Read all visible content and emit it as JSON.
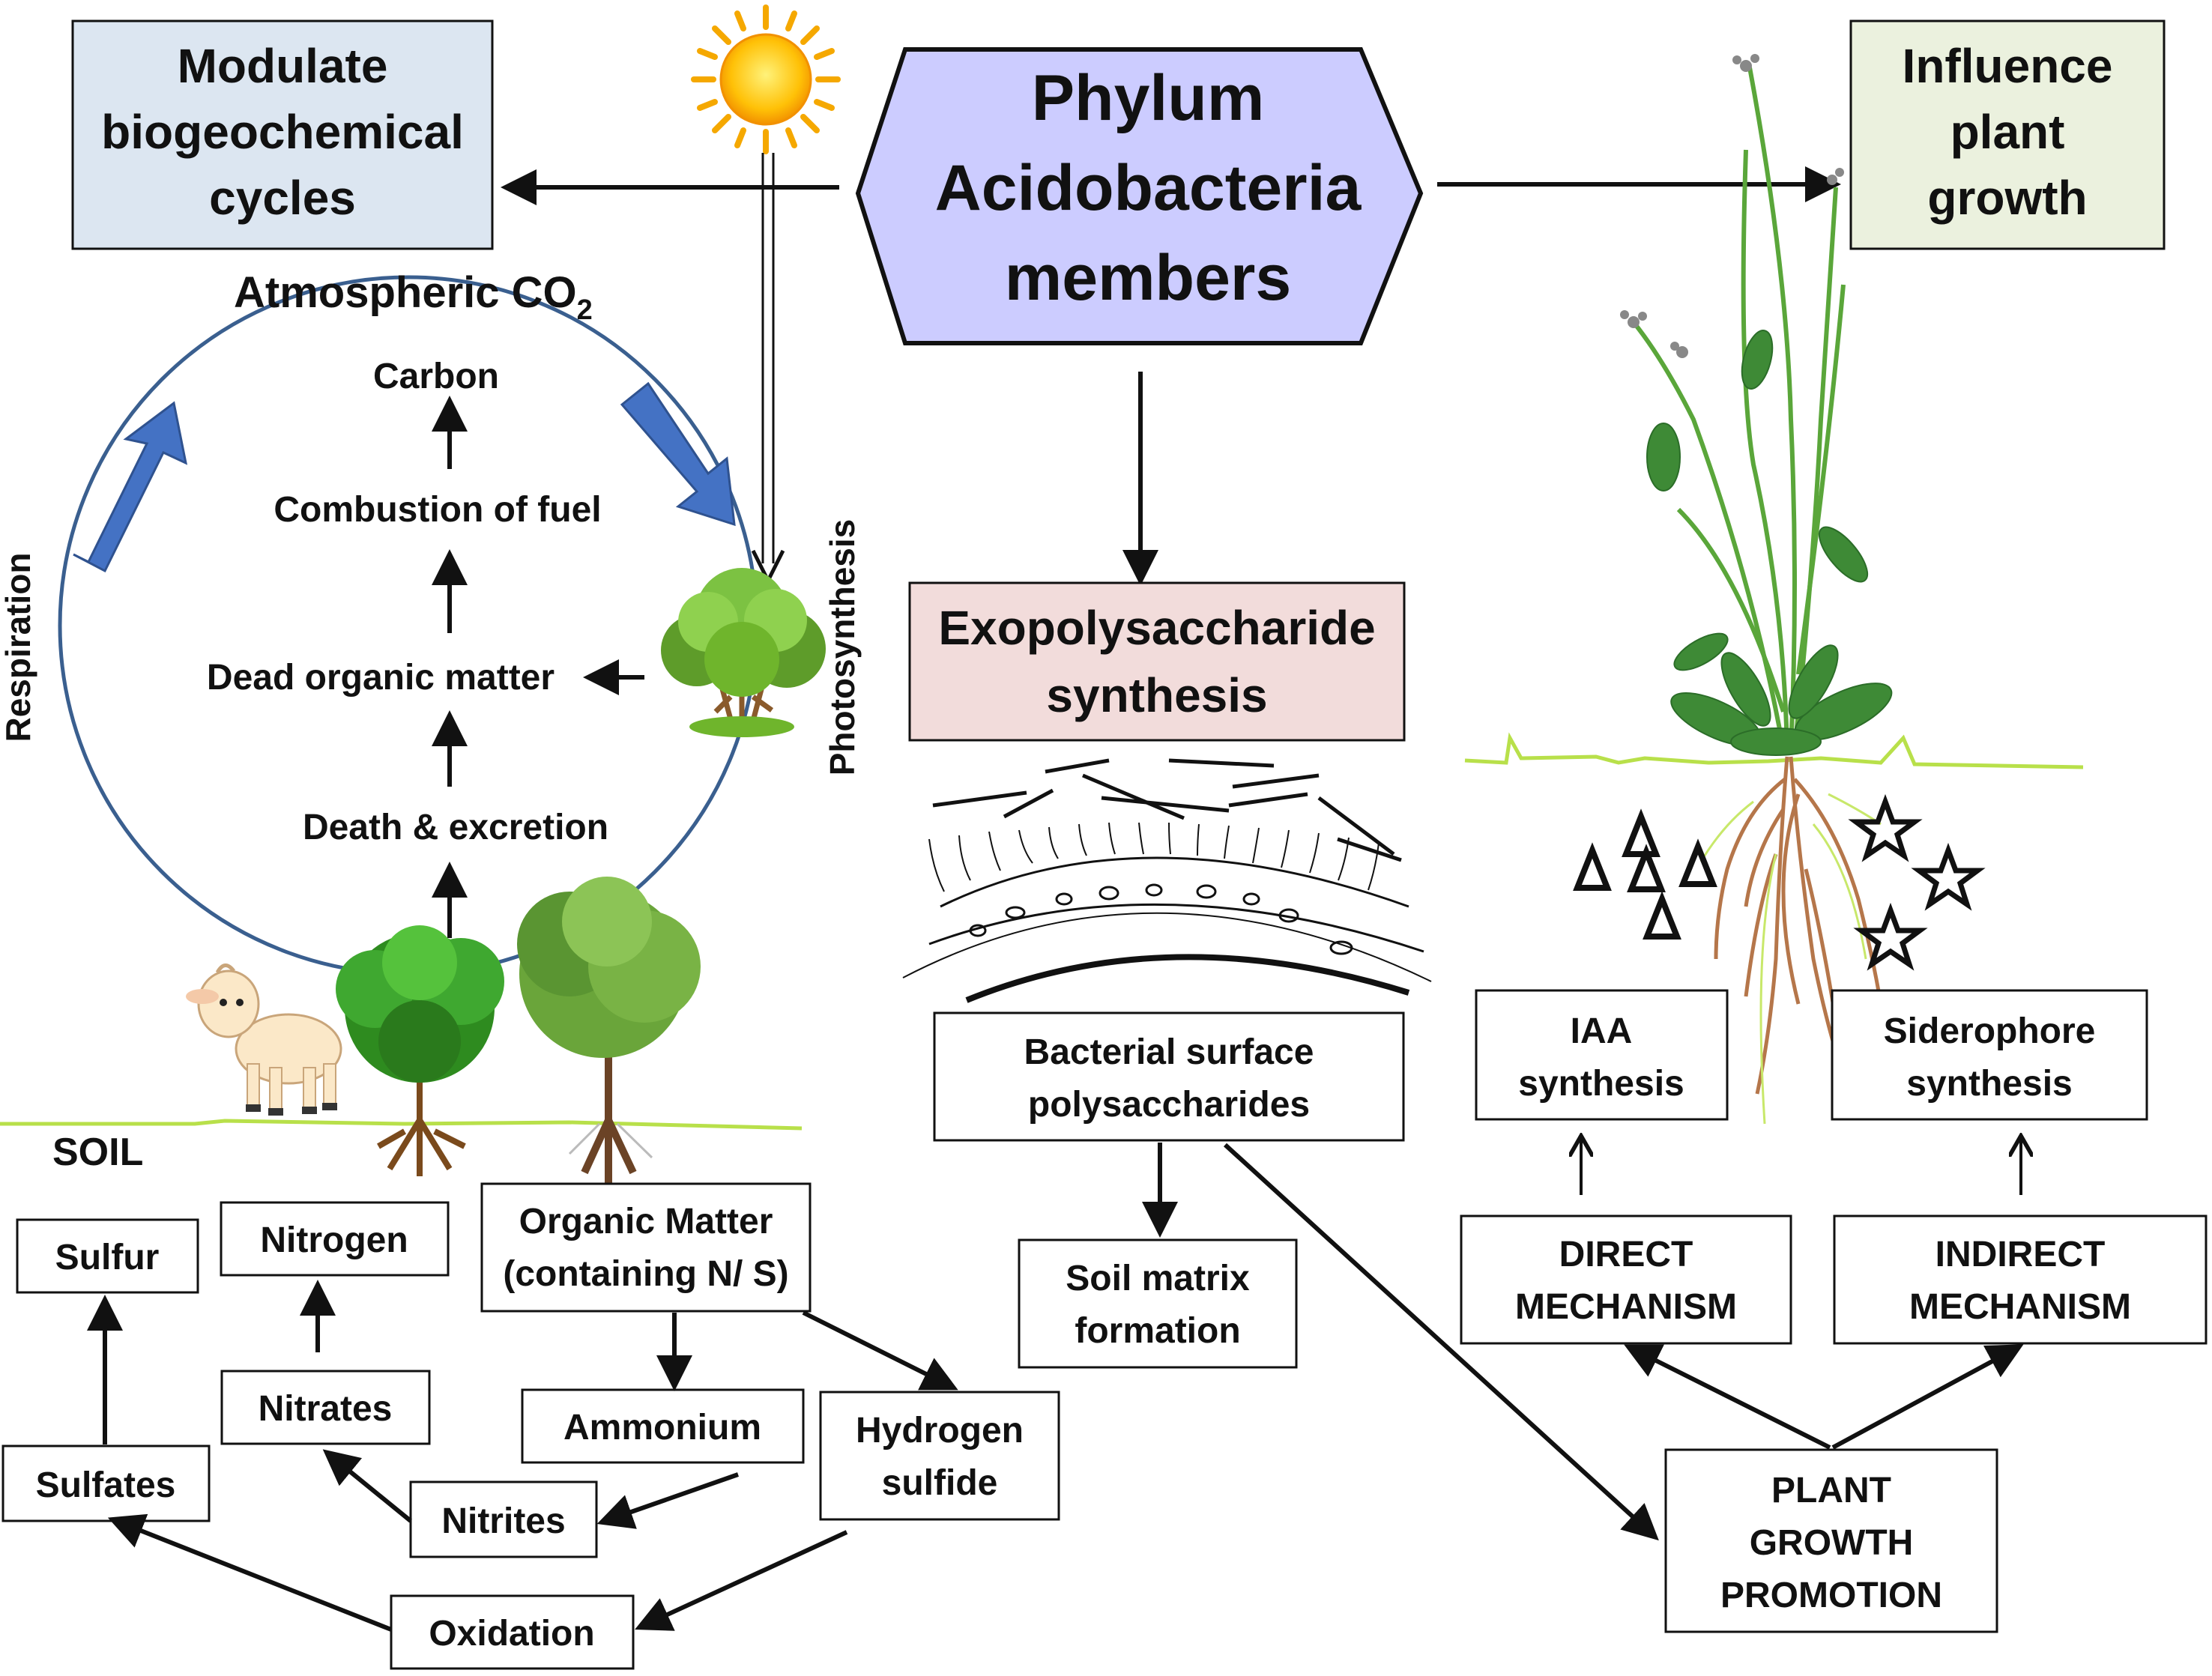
{
  "header": {
    "phylum_line1": "Phylum",
    "phylum_line2": "Acidobacteria",
    "phylum_line3": "members",
    "modulate_line1": "Modulate",
    "modulate_line2": "biogeochemical",
    "modulate_line3": "cycles",
    "influence_line1": "Influence",
    "influence_line2": "plant",
    "influence_line3": "growth"
  },
  "carbon_cycle": {
    "atmospheric": "Atmospheric CO",
    "atmospheric_sub": "2",
    "carbon": "Carbon",
    "combustion": "Combustion of fuel",
    "dead_matter": "Dead organic matter",
    "death": "Death & excretion",
    "respiration": "Respiration",
    "photosynthesis": "Photosynthesis"
  },
  "soil": {
    "soil_label": "SOIL",
    "sulfur": "Sulfur",
    "nitrogen": "Nitrogen",
    "organic_line1": "Organic Matter",
    "organic_line2": "(containing N/ S)",
    "nitrates": "Nitrates",
    "ammonium": "Ammonium",
    "hydrogen_line1": "Hydrogen",
    "hydrogen_line2": "sulfide",
    "sulfates": "Sulfates",
    "nitrites": "Nitrites",
    "oxidation": "Oxidation"
  },
  "exopolysaccharide": {
    "title_line1": "Exopolysaccharide",
    "title_line2": "synthesis",
    "surface_line1": "Bacterial surface",
    "surface_line2": "polysaccharides",
    "matrix_line1": "Soil matrix",
    "matrix_line2": "formation"
  },
  "plant_growth": {
    "iaa_line1": "IAA",
    "iaa_line2": "synthesis",
    "siderophore_line1": "Siderophore",
    "siderophore_line2": "synthesis",
    "direct_line1": "DIRECT",
    "direct_line2": "MECHANISM",
    "indirect_line1": "INDIRECT",
    "indirect_line2": "MECHANISM",
    "pgp_line1": "PLANT",
    "pgp_line2": "GROWTH",
    "pgp_line3": "PROMOTION"
  },
  "colors": {
    "hexagon": "#ccccff",
    "modulate_box": "#dce6f1",
    "influence_box": "#ebf1de",
    "exo_box": "#f2dcdb",
    "cycle_arrow": "#4472c4",
    "cycle_circle": "#3a5f8f",
    "ground_line": "#b8e04a"
  }
}
